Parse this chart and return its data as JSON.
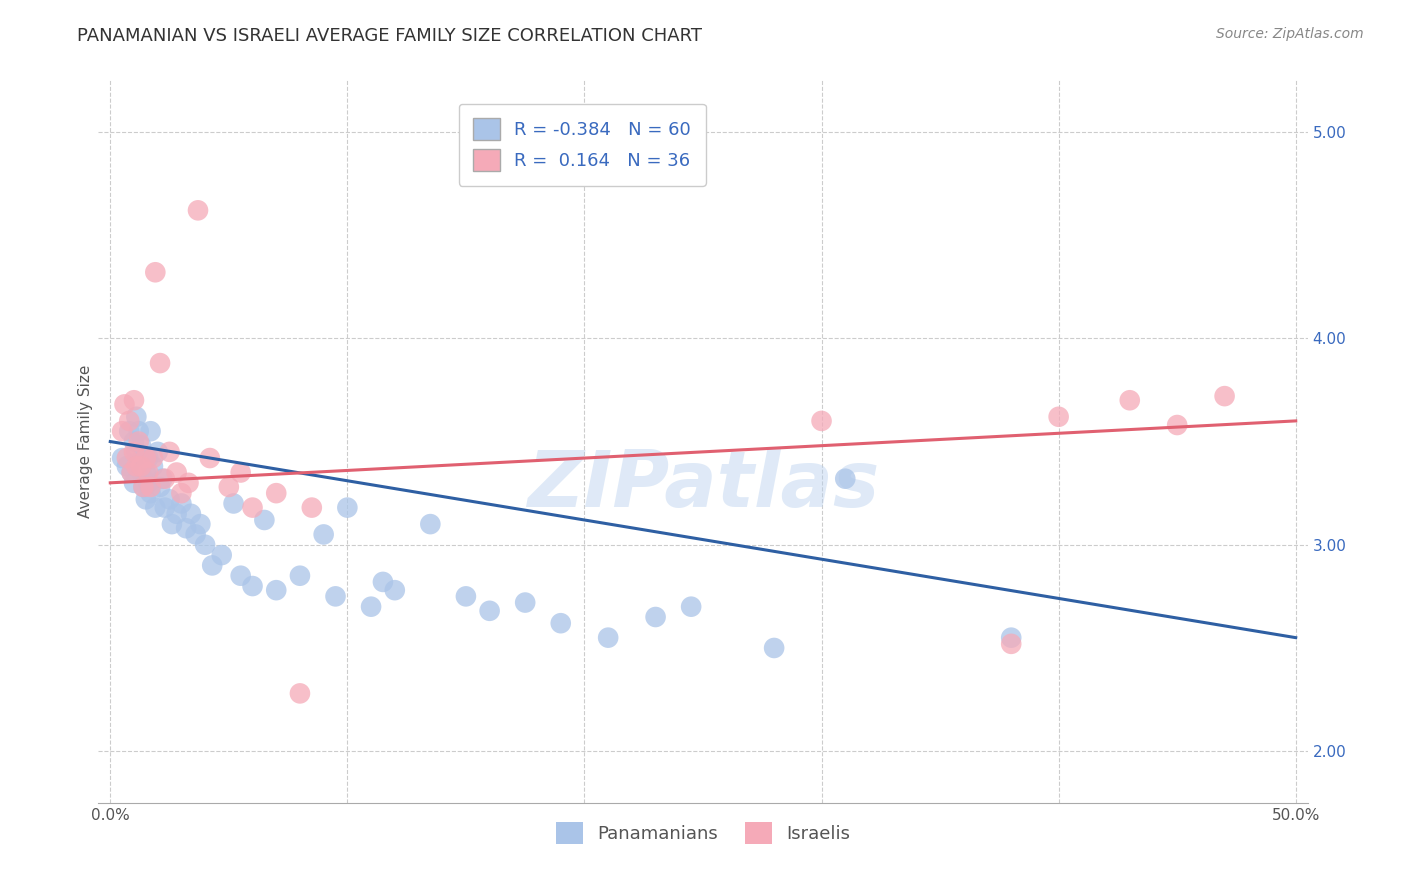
{
  "title": "PANAMANIAN VS ISRAELI AVERAGE FAMILY SIZE CORRELATION CHART",
  "source": "Source: ZipAtlas.com",
  "ylabel": "Average Family Size",
  "watermark": "ZIPatlas",
  "ylim": [
    1.75,
    5.25
  ],
  "xlim": [
    -0.005,
    0.505
  ],
  "yticks_right": [
    2.0,
    3.0,
    4.0,
    5.0
  ],
  "xticks": [
    0.0,
    0.1,
    0.2,
    0.3,
    0.4,
    0.5
  ],
  "xtick_labels": [
    "0.0%",
    "",
    "",
    "",
    "",
    "50.0%"
  ],
  "blue_color": "#aac4e8",
  "pink_color": "#f5aab8",
  "line_blue": "#2e5fa3",
  "line_pink": "#e06070",
  "text_blue": "#3a6abf",
  "legend_R_blue": "-0.384",
  "legend_N_blue": "60",
  "legend_R_pink": "0.164",
  "legend_N_pink": "36",
  "blue_dots_x": [
    0.005,
    0.007,
    0.008,
    0.009,
    0.01,
    0.01,
    0.011,
    0.011,
    0.012,
    0.012,
    0.013,
    0.013,
    0.014,
    0.014,
    0.015,
    0.015,
    0.016,
    0.016,
    0.017,
    0.017,
    0.018,
    0.019,
    0.02,
    0.021,
    0.022,
    0.023,
    0.025,
    0.026,
    0.028,
    0.03,
    0.032,
    0.034,
    0.036,
    0.038,
    0.04,
    0.043,
    0.047,
    0.052,
    0.055,
    0.06,
    0.065,
    0.07,
    0.08,
    0.09,
    0.095,
    0.1,
    0.11,
    0.115,
    0.12,
    0.135,
    0.15,
    0.16,
    0.175,
    0.19,
    0.21,
    0.23,
    0.245,
    0.28,
    0.31,
    0.38
  ],
  "blue_dots_y": [
    3.42,
    3.38,
    3.55,
    3.35,
    3.5,
    3.3,
    3.62,
    3.45,
    3.55,
    3.4,
    3.48,
    3.35,
    3.42,
    3.28,
    3.35,
    3.22,
    3.42,
    3.3,
    3.55,
    3.25,
    3.38,
    3.18,
    3.45,
    3.28,
    3.32,
    3.18,
    3.22,
    3.1,
    3.15,
    3.2,
    3.08,
    3.15,
    3.05,
    3.1,
    3.0,
    2.9,
    2.95,
    3.2,
    2.85,
    2.8,
    3.12,
    2.78,
    2.85,
    3.05,
    2.75,
    3.18,
    2.7,
    2.82,
    2.78,
    3.1,
    2.75,
    2.68,
    2.72,
    2.62,
    2.55,
    2.65,
    2.7,
    2.5,
    3.32,
    2.55
  ],
  "pink_dots_x": [
    0.005,
    0.006,
    0.007,
    0.008,
    0.009,
    0.01,
    0.01,
    0.011,
    0.012,
    0.013,
    0.014,
    0.015,
    0.016,
    0.017,
    0.018,
    0.019,
    0.021,
    0.023,
    0.025,
    0.028,
    0.03,
    0.033,
    0.037,
    0.042,
    0.05,
    0.055,
    0.06,
    0.07,
    0.08,
    0.085,
    0.3,
    0.38,
    0.4,
    0.43,
    0.45,
    0.47
  ],
  "pink_dots_y": [
    3.55,
    3.68,
    3.42,
    3.6,
    3.35,
    3.7,
    3.45,
    3.38,
    3.5,
    3.38,
    3.28,
    3.42,
    3.35,
    3.28,
    3.42,
    4.32,
    3.88,
    3.32,
    3.45,
    3.35,
    3.25,
    3.3,
    4.62,
    3.42,
    3.28,
    3.35,
    3.18,
    3.25,
    2.28,
    3.18,
    3.6,
    2.52,
    3.62,
    3.7,
    3.58,
    3.72
  ],
  "blue_trend_x": [
    0.0,
    0.5
  ],
  "blue_trend_y": [
    3.5,
    2.55
  ],
  "pink_trend_x": [
    0.0,
    0.5
  ],
  "pink_trend_y": [
    3.3,
    3.6
  ],
  "background_color": "#ffffff",
  "grid_color": "#cccccc",
  "title_color": "#333333",
  "title_fontsize": 13,
  "axis_label_fontsize": 11,
  "tick_fontsize": 11,
  "legend_fontsize": 13,
  "source_fontsize": 10
}
